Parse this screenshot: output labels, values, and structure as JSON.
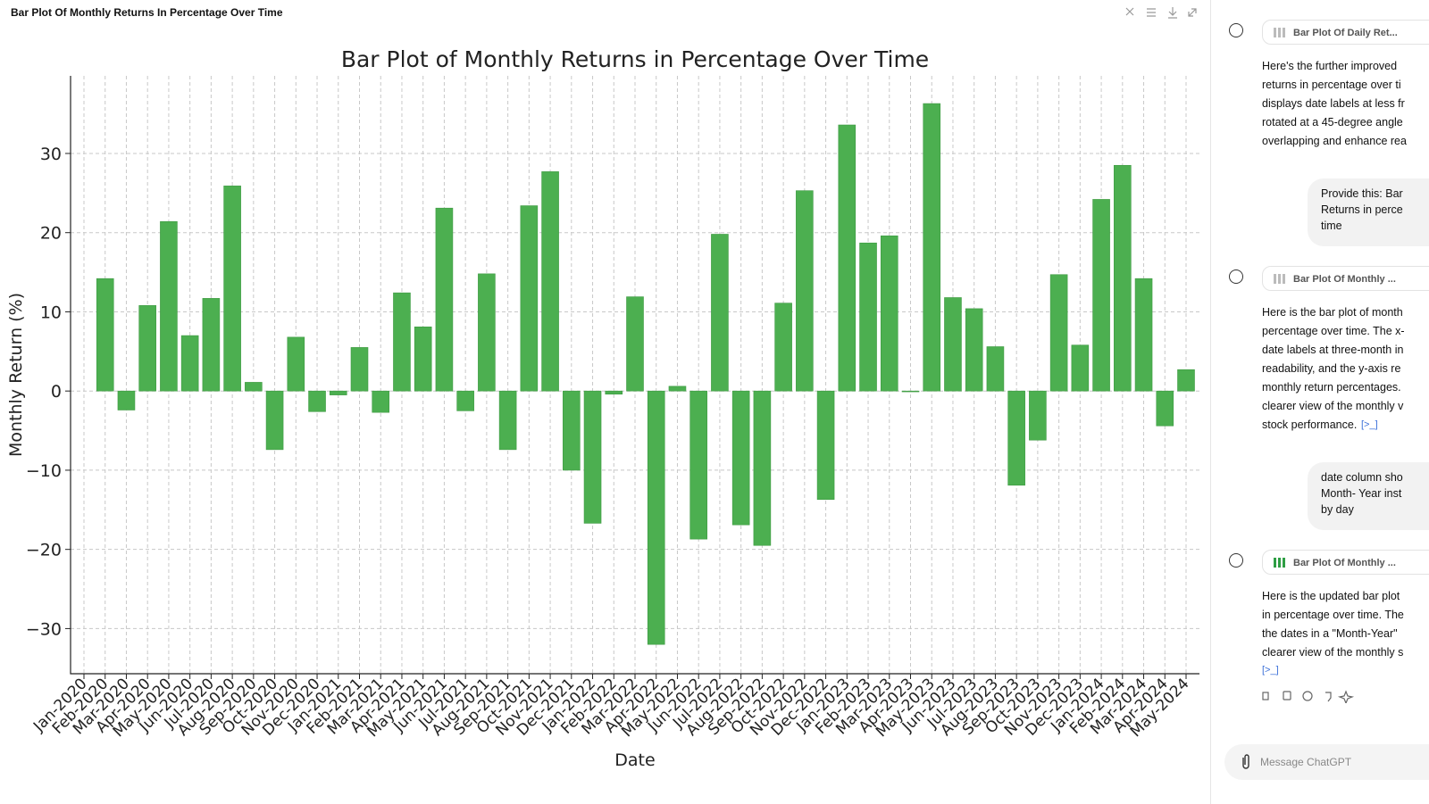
{
  "header": {
    "title": "Bar Plot Of Monthly Returns In Percentage Over Time"
  },
  "chart_data": {
    "type": "bar",
    "title": "Bar Plot of Monthly Returns in Percentage Over Time",
    "x_label": "Date",
    "y_label": "Monthly Return (%)",
    "categories": [
      "Jan-2020",
      "Feb-2020",
      "Mar-2020",
      "Apr-2020",
      "May-2020",
      "Jun-2020",
      "Jul-2020",
      "Aug-2020",
      "Sep-2020",
      "Oct-2020",
      "Nov-2020",
      "Dec-2020",
      "Jan-2021",
      "Feb-2021",
      "Mar-2021",
      "Apr-2021",
      "May-2021",
      "Jun-2021",
      "Jul-2021",
      "Aug-2021",
      "Sep-2021",
      "Oct-2021",
      "Nov-2021",
      "Dec-2021",
      "Jan-2022",
      "Feb-2022",
      "Mar-2022",
      "Apr-2022",
      "May-2022",
      "Jun-2022",
      "Jul-2022",
      "Aug-2022",
      "Sep-2022",
      "Oct-2022",
      "Nov-2022",
      "Dec-2022",
      "Jan-2023",
      "Feb-2023",
      "Mar-2023",
      "Apr-2023",
      "May-2023",
      "Jun-2023",
      "Jul-2023",
      "Aug-2023",
      "Sep-2023",
      "Oct-2023",
      "Nov-2023",
      "Dec-2023",
      "Jan-2024",
      "Feb-2024",
      "Mar-2024",
      "Apr-2024",
      "May-2024"
    ],
    "values": [
      null,
      14.2,
      -2.4,
      10.8,
      21.4,
      7.0,
      11.7,
      25.9,
      1.1,
      -7.4,
      6.8,
      -2.6,
      -0.5,
      5.5,
      -2.7,
      12.4,
      8.1,
      23.1,
      -2.5,
      14.8,
      -7.4,
      23.4,
      27.7,
      -10.0,
      -16.7,
      -0.4,
      11.9,
      -32.0,
      0.6,
      -18.7,
      19.8,
      -16.9,
      -19.5,
      11.1,
      25.3,
      -13.7,
      33.6,
      18.7,
      19.6,
      -0.1,
      36.3,
      11.8,
      10.4,
      5.6,
      -11.9,
      -6.2,
      14.7,
      5.8,
      24.2,
      28.5,
      14.2,
      -4.4,
      2.7
    ],
    "color": "#4caf50",
    "ylim": [
      -35.7,
      39.8
    ],
    "yticks": [
      {
        "value": -30,
        "label": "−30"
      },
      {
        "value": -20,
        "label": "−20"
      },
      {
        "value": -10,
        "label": "−10"
      },
      0,
      10,
      20,
      30
    ],
    "grid": true
  },
  "sidebar": {
    "messages": [
      {
        "role": "assistant",
        "card": "Bar Plot Of Daily Ret...",
        "lines": [
          "Here's the further improved",
          "returns in percentage over ti",
          "displays date labels at less fr",
          "rotated at a 45-degree angle",
          "overlapping and enhance rea"
        ]
      },
      {
        "role": "user",
        "lines": [
          "Provide this: Bar",
          "Returns in perce",
          "time"
        ]
      },
      {
        "role": "assistant",
        "card": "Bar Plot Of Monthly ...",
        "lines": [
          "Here is the bar plot of month",
          "percentage over time. The x-",
          "date labels at three-month in",
          "readability, and the y-axis re",
          "monthly return percentages.",
          "clearer view of the monthly v",
          "stock performance."
        ],
        "link": "[>_]"
      },
      {
        "role": "user",
        "lines": [
          "date column sho",
          "Month- Year inst",
          "by day"
        ]
      },
      {
        "role": "assistant",
        "card": "Bar Plot Of Monthly ...",
        "active": true,
        "lines": [
          "Here is the updated bar plot",
          "in percentage over time. The",
          "the dates in a \"Month-Year\"",
          "clearer view of the monthly s"
        ],
        "link": "[>_]"
      }
    ],
    "input_placeholder": "Message ChatGPT"
  }
}
